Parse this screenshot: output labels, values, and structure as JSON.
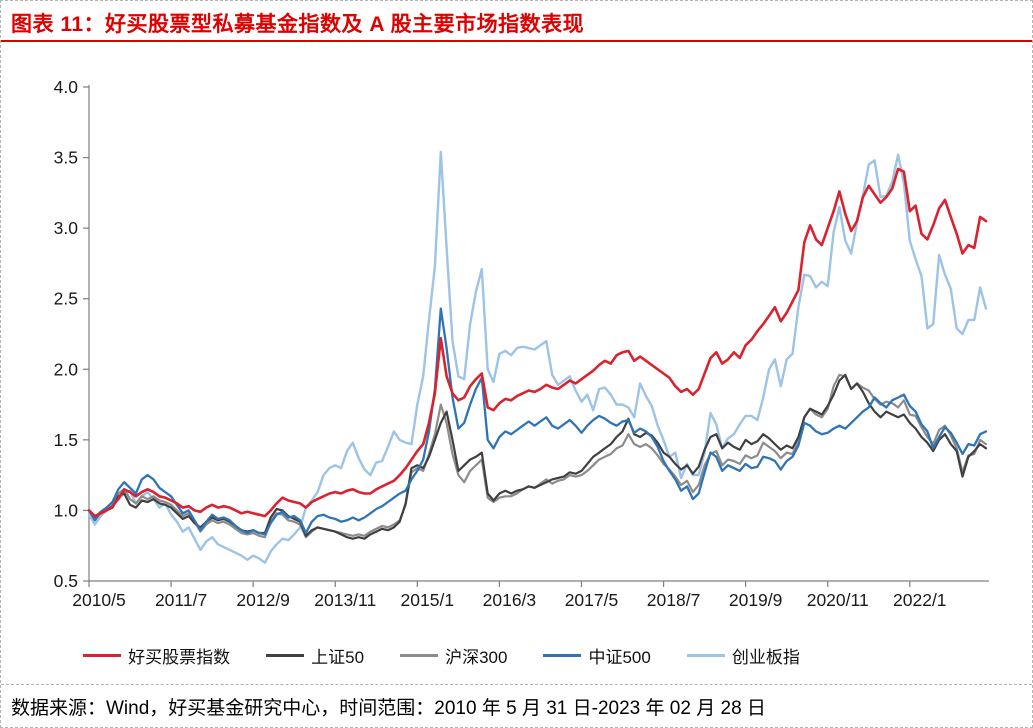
{
  "page": {
    "title": "图表 11：好买股票型私募基金指数及 A 股主要市场指数表现",
    "footer": "数据来源：Wind，好买基金研究中心，时间范围：2010 年 5 月 31 日-2023 年 02 月 28 日"
  },
  "colors": {
    "title_red": "#e00000",
    "axis_gray": "#7f7f7f",
    "tick_text": "#1a1a1a",
    "border_dash": "#b3b3b3"
  },
  "chart_data": {
    "type": "line",
    "title": "好买股票型私募基金指数及 A 股主要市场指数表现",
    "xlabel": "",
    "ylabel": "",
    "grid": false,
    "legend_position": "bottom",
    "x_frequency": "monthly",
    "x_start": "2010/5",
    "x_end": "2023/2",
    "ylim": [
      0.5,
      4.0
    ],
    "y_ticks": [
      4.0,
      3.5,
      3.0,
      2.5,
      2.0,
      1.5,
      1.0,
      0.5
    ],
    "x_tick_labels": [
      "2010/5",
      "2011/7",
      "2012/9",
      "2013/11",
      "2015/1",
      "2016/3",
      "2017/5",
      "2018/7",
      "2019/9",
      "2020/11",
      "2022/1"
    ],
    "x_tick_indices": [
      0,
      14,
      28,
      42,
      56,
      70,
      84,
      98,
      112,
      126,
      140
    ],
    "series": [
      {
        "name": "好买股票指数",
        "color": "#d9232f",
        "values": [
          1.0,
          0.96,
          0.98,
          1.0,
          1.03,
          1.08,
          1.15,
          1.13,
          1.1,
          1.13,
          1.15,
          1.13,
          1.1,
          1.09,
          1.07,
          1.05,
          1.02,
          1.03,
          1.0,
          0.99,
          1.02,
          1.04,
          1.02,
          1.03,
          1.02,
          1.0,
          0.98,
          0.99,
          0.98,
          0.97,
          0.96,
          1.0,
          1.05,
          1.09,
          1.07,
          1.06,
          1.05,
          1.02,
          1.06,
          1.08,
          1.1,
          1.12,
          1.13,
          1.12,
          1.14,
          1.15,
          1.13,
          1.12,
          1.12,
          1.15,
          1.17,
          1.19,
          1.21,
          1.25,
          1.3,
          1.36,
          1.42,
          1.47,
          1.62,
          1.83,
          2.22,
          1.95,
          1.83,
          1.78,
          1.8,
          1.88,
          1.93,
          1.97,
          1.73,
          1.71,
          1.76,
          1.79,
          1.78,
          1.81,
          1.83,
          1.85,
          1.84,
          1.86,
          1.89,
          1.87,
          1.86,
          1.89,
          1.92,
          1.9,
          1.93,
          1.96,
          1.99,
          2.03,
          2.06,
          2.04,
          2.1,
          2.12,
          2.13,
          2.06,
          2.09,
          2.06,
          2.03,
          2.0,
          1.97,
          1.94,
          1.88,
          1.84,
          1.86,
          1.82,
          1.86,
          1.97,
          2.08,
          2.12,
          2.04,
          2.07,
          2.12,
          2.08,
          2.17,
          2.21,
          2.27,
          2.32,
          2.38,
          2.44,
          2.34,
          2.4,
          2.48,
          2.56,
          2.9,
          3.02,
          2.92,
          2.88,
          3.0,
          3.12,
          3.26,
          3.1,
          2.98,
          3.05,
          3.22,
          3.3,
          3.24,
          3.18,
          3.22,
          3.28,
          3.42,
          3.4,
          3.12,
          3.16,
          2.96,
          2.92,
          3.02,
          3.14,
          3.2,
          3.08,
          2.96,
          2.82,
          2.88,
          2.86,
          3.08,
          3.05
        ]
      },
      {
        "name": "上证50",
        "color": "#404040",
        "values": [
          1.0,
          0.95,
          0.99,
          1.0,
          1.02,
          1.1,
          1.12,
          1.04,
          1.02,
          1.07,
          1.06,
          1.08,
          1.05,
          1.04,
          1.02,
          0.98,
          0.94,
          0.96,
          0.91,
          0.88,
          0.92,
          0.95,
          0.93,
          0.94,
          0.92,
          0.89,
          0.86,
          0.85,
          0.86,
          0.84,
          0.84,
          0.95,
          1.01,
          1.0,
          0.96,
          0.94,
          0.92,
          0.82,
          0.86,
          0.88,
          0.87,
          0.86,
          0.85,
          0.83,
          0.81,
          0.8,
          0.81,
          0.8,
          0.83,
          0.85,
          0.87,
          0.86,
          0.88,
          0.92,
          1.05,
          1.3,
          1.32,
          1.3,
          1.38,
          1.5,
          1.62,
          1.7,
          1.5,
          1.28,
          1.32,
          1.36,
          1.38,
          1.41,
          1.12,
          1.07,
          1.12,
          1.14,
          1.12,
          1.14,
          1.15,
          1.17,
          1.16,
          1.18,
          1.2,
          1.22,
          1.23,
          1.24,
          1.27,
          1.26,
          1.28,
          1.33,
          1.38,
          1.41,
          1.44,
          1.47,
          1.52,
          1.56,
          1.65,
          1.54,
          1.52,
          1.55,
          1.53,
          1.48,
          1.41,
          1.38,
          1.33,
          1.29,
          1.32,
          1.26,
          1.31,
          1.43,
          1.52,
          1.54,
          1.44,
          1.48,
          1.45,
          1.43,
          1.5,
          1.47,
          1.49,
          1.54,
          1.51,
          1.47,
          1.43,
          1.46,
          1.44,
          1.52,
          1.66,
          1.72,
          1.7,
          1.68,
          1.74,
          1.82,
          1.92,
          1.96,
          1.86,
          1.9,
          1.84,
          1.76,
          1.7,
          1.66,
          1.7,
          1.68,
          1.66,
          1.68,
          1.62,
          1.58,
          1.52,
          1.48,
          1.42,
          1.5,
          1.54,
          1.47,
          1.42,
          1.24,
          1.38,
          1.42,
          1.47,
          1.44
        ]
      },
      {
        "name": "沪深300",
        "color": "#8c8c8c",
        "values": [
          1.0,
          0.94,
          0.98,
          1.0,
          1.03,
          1.12,
          1.15,
          1.08,
          1.05,
          1.1,
          1.08,
          1.1,
          1.07,
          1.06,
          1.04,
          1.0,
          0.96,
          0.98,
          0.92,
          0.85,
          0.9,
          0.93,
          0.91,
          0.92,
          0.9,
          0.87,
          0.84,
          0.83,
          0.84,
          0.82,
          0.81,
          0.92,
          0.98,
          0.97,
          0.93,
          0.92,
          0.9,
          0.81,
          0.85,
          0.88,
          0.87,
          0.86,
          0.85,
          0.84,
          0.83,
          0.82,
          0.83,
          0.82,
          0.85,
          0.87,
          0.89,
          0.88,
          0.9,
          0.93,
          1.04,
          1.27,
          1.3,
          1.28,
          1.4,
          1.54,
          1.75,
          1.62,
          1.4,
          1.25,
          1.2,
          1.28,
          1.32,
          1.36,
          1.09,
          1.06,
          1.09,
          1.1,
          1.1,
          1.12,
          1.15,
          1.17,
          1.16,
          1.19,
          1.22,
          1.19,
          1.21,
          1.22,
          1.25,
          1.24,
          1.25,
          1.28,
          1.32,
          1.36,
          1.38,
          1.4,
          1.44,
          1.46,
          1.54,
          1.47,
          1.45,
          1.47,
          1.44,
          1.39,
          1.33,
          1.29,
          1.24,
          1.18,
          1.21,
          1.13,
          1.18,
          1.32,
          1.4,
          1.42,
          1.32,
          1.36,
          1.35,
          1.33,
          1.39,
          1.37,
          1.39,
          1.48,
          1.45,
          1.42,
          1.37,
          1.41,
          1.4,
          1.49,
          1.66,
          1.72,
          1.68,
          1.66,
          1.72,
          1.88,
          1.96,
          1.95,
          1.86,
          1.9,
          1.87,
          1.85,
          1.79,
          1.75,
          1.77,
          1.76,
          1.73,
          1.78,
          1.68,
          1.67,
          1.59,
          1.52,
          1.47,
          1.57,
          1.6,
          1.53,
          1.44,
          1.27,
          1.39,
          1.4,
          1.5,
          1.47
        ]
      },
      {
        "name": "中证500",
        "color": "#2e74b6",
        "values": [
          1.0,
          0.93,
          0.99,
          1.02,
          1.06,
          1.15,
          1.2,
          1.16,
          1.12,
          1.22,
          1.25,
          1.22,
          1.16,
          1.13,
          1.1,
          1.04,
          0.98,
          1.0,
          0.93,
          0.86,
          0.92,
          0.97,
          0.94,
          0.95,
          0.93,
          0.89,
          0.86,
          0.84,
          0.86,
          0.84,
          0.83,
          0.91,
          0.97,
          0.99,
          0.95,
          0.96,
          0.93,
          0.84,
          0.92,
          0.96,
          0.97,
          0.95,
          0.94,
          0.92,
          0.93,
          0.95,
          0.93,
          0.95,
          0.98,
          1.01,
          1.03,
          1.06,
          1.09,
          1.12,
          1.14,
          1.22,
          1.28,
          1.36,
          1.56,
          1.86,
          2.43,
          2.15,
          1.8,
          1.58,
          1.62,
          1.75,
          1.86,
          1.94,
          1.5,
          1.44,
          1.52,
          1.56,
          1.54,
          1.57,
          1.6,
          1.63,
          1.6,
          1.63,
          1.66,
          1.6,
          1.58,
          1.61,
          1.64,
          1.6,
          1.55,
          1.6,
          1.64,
          1.67,
          1.65,
          1.62,
          1.6,
          1.63,
          1.64,
          1.55,
          1.58,
          1.56,
          1.52,
          1.45,
          1.35,
          1.28,
          1.22,
          1.14,
          1.17,
          1.08,
          1.12,
          1.27,
          1.41,
          1.38,
          1.28,
          1.32,
          1.3,
          1.28,
          1.33,
          1.3,
          1.31,
          1.38,
          1.37,
          1.35,
          1.29,
          1.35,
          1.38,
          1.46,
          1.62,
          1.6,
          1.56,
          1.54,
          1.55,
          1.58,
          1.6,
          1.58,
          1.62,
          1.66,
          1.7,
          1.73,
          1.8,
          1.76,
          1.73,
          1.78,
          1.8,
          1.82,
          1.74,
          1.7,
          1.61,
          1.56,
          1.44,
          1.52,
          1.59,
          1.55,
          1.48,
          1.4,
          1.47,
          1.46,
          1.54,
          1.56
        ]
      },
      {
        "name": "创业板指",
        "color": "#9dc3e6",
        "values": [
          0.97,
          0.9,
          0.96,
          1.0,
          1.05,
          1.08,
          1.12,
          1.14,
          1.05,
          1.1,
          1.13,
          1.08,
          1.02,
          1.05,
          0.97,
          0.92,
          0.85,
          0.88,
          0.8,
          0.72,
          0.78,
          0.81,
          0.76,
          0.74,
          0.72,
          0.7,
          0.68,
          0.65,
          0.68,
          0.66,
          0.63,
          0.71,
          0.76,
          0.8,
          0.79,
          0.83,
          0.88,
          1.02,
          1.07,
          1.13,
          1.25,
          1.3,
          1.32,
          1.3,
          1.42,
          1.48,
          1.37,
          1.29,
          1.25,
          1.34,
          1.35,
          1.45,
          1.56,
          1.5,
          1.48,
          1.47,
          1.75,
          1.95,
          2.35,
          2.73,
          3.54,
          2.86,
          2.2,
          1.95,
          1.93,
          2.32,
          2.55,
          2.71,
          2.0,
          1.91,
          2.11,
          2.13,
          2.1,
          2.15,
          2.16,
          2.15,
          2.14,
          2.17,
          2.2,
          1.96,
          1.89,
          1.92,
          1.95,
          1.85,
          1.77,
          1.82,
          1.71,
          1.86,
          1.87,
          1.82,
          1.75,
          1.75,
          1.73,
          1.66,
          1.9,
          1.81,
          1.74,
          1.6,
          1.5,
          1.38,
          1.41,
          1.23,
          1.33,
          1.25,
          1.25,
          1.41,
          1.69,
          1.61,
          1.44,
          1.51,
          1.54,
          1.61,
          1.67,
          1.67,
          1.64,
          1.8,
          2.0,
          2.07,
          1.88,
          2.07,
          2.11,
          2.44,
          2.67,
          2.66,
          2.58,
          2.62,
          2.59,
          2.97,
          3.15,
          2.91,
          2.82,
          3.04,
          3.23,
          3.45,
          3.48,
          3.22,
          3.23,
          3.33,
          3.52,
          3.32,
          2.91,
          2.78,
          2.66,
          2.29,
          2.32,
          2.81,
          2.67,
          2.57,
          2.29,
          2.25,
          2.35,
          2.35,
          2.58,
          2.43
        ]
      }
    ]
  }
}
